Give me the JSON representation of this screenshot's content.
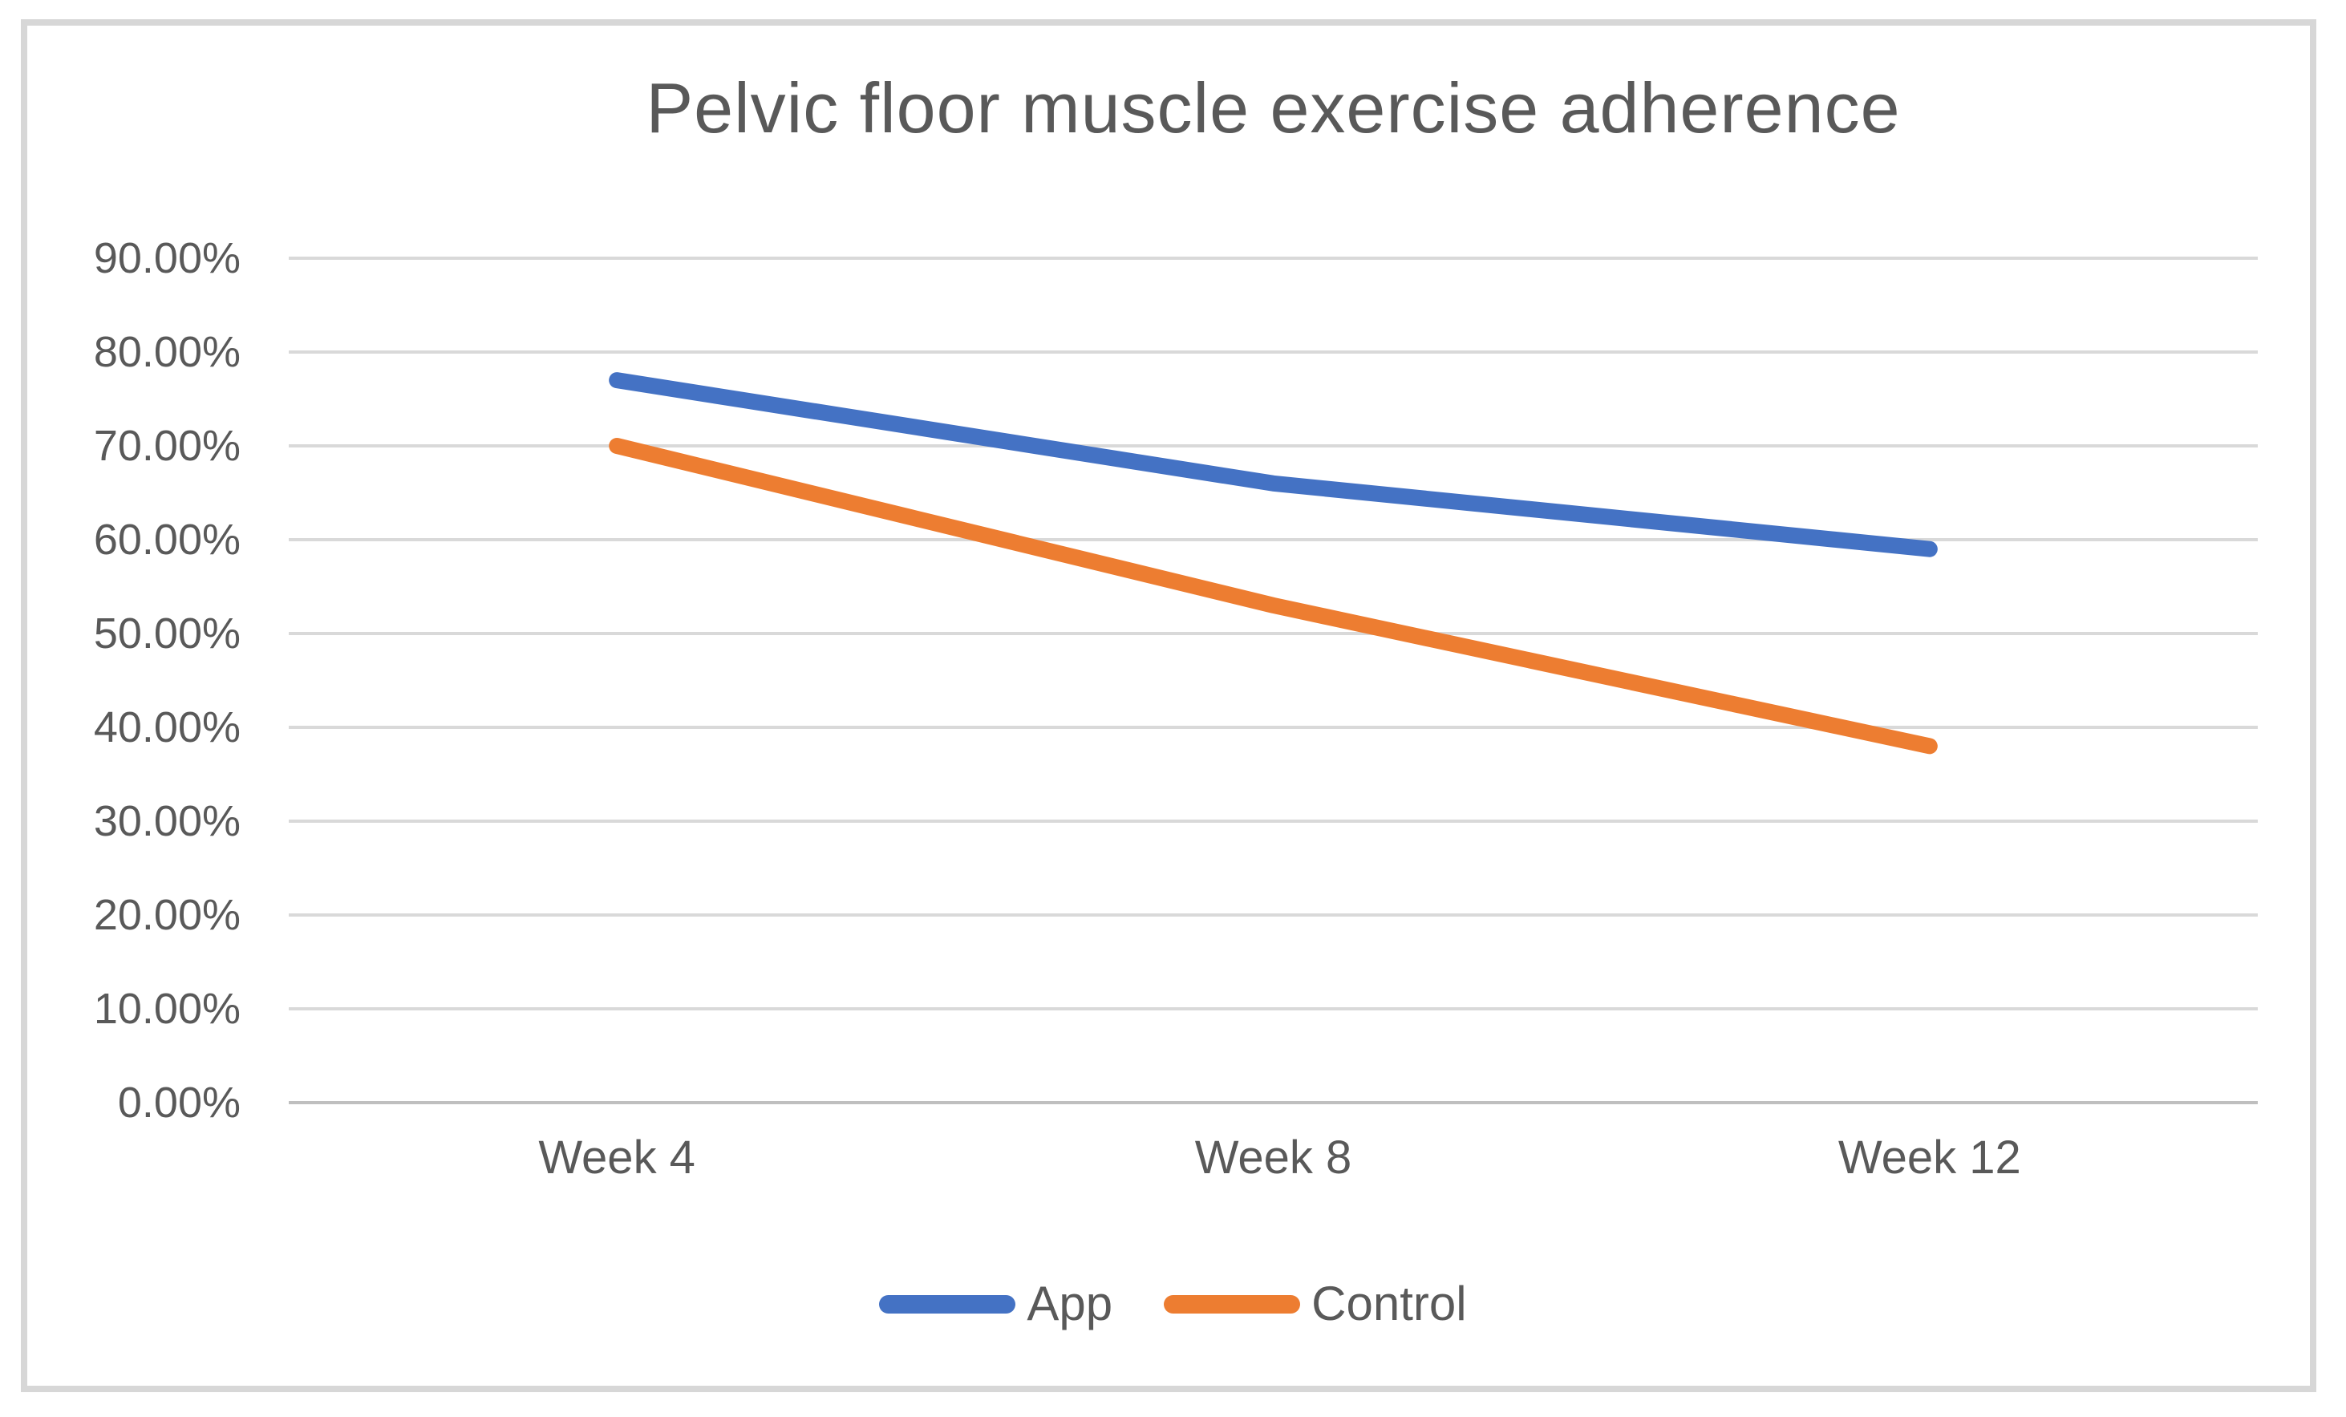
{
  "chart_data": {
    "type": "line",
    "title": "Pelvic floor muscle exercise adherence",
    "categories": [
      "Week 4",
      "Week 8",
      "Week 12"
    ],
    "series": [
      {
        "name": "App",
        "values": [
          77,
          66,
          59
        ],
        "color": "#4472C4"
      },
      {
        "name": "Control",
        "values": [
          70,
          53,
          38
        ],
        "color": "#ED7D31"
      }
    ],
    "y_axis": {
      "min": 0,
      "max": 90,
      "step": 10,
      "tick_labels": [
        "0.00%",
        "10.00%",
        "20.00%",
        "30.00%",
        "40.00%",
        "50.00%",
        "60.00%",
        "70.00%",
        "80.00%",
        "90.00%"
      ]
    },
    "xlabel": "",
    "ylabel": "",
    "ylim": [
      0,
      90
    ],
    "grid": "horizontal",
    "legend_position": "bottom",
    "styles": {
      "gridline_color": "#D9D9D9",
      "zero_axis_color": "#BFBFBF",
      "text_color": "#595959",
      "frame_border_color": "#D7D7D7",
      "background_color": "#FFFFFF",
      "line_width": 20
    }
  }
}
